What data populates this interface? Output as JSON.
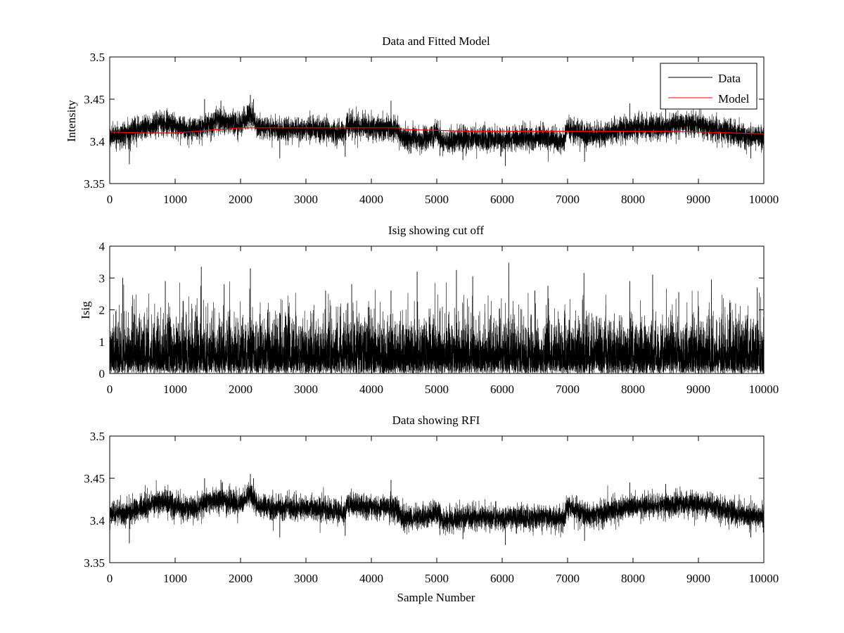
{
  "chart_data": [
    {
      "type": "line",
      "title": "Data and Fitted Model",
      "xlabel": "",
      "ylabel": "Intensity",
      "xlim": [
        0,
        10000
      ],
      "ylim": [
        3.35,
        3.5
      ],
      "xticks": [
        0,
        1000,
        2000,
        3000,
        4000,
        5000,
        6000,
        7000,
        8000,
        9000,
        10000
      ],
      "yticks": [
        3.35,
        3.4,
        3.45,
        3.5
      ],
      "xtick_labels": [
        "0",
        "1000",
        "2000",
        "3000",
        "4000",
        "5000",
        "6000",
        "7000",
        "8000",
        "9000",
        "10000"
      ],
      "ytick_labels": [
        "3.35",
        "3.4",
        "3.45",
        "3.5"
      ],
      "n_samples": 10000,
      "legend": {
        "position": "top-right",
        "entries": [
          "Data",
          "Model"
        ]
      },
      "series": [
        {
          "name": "Data",
          "color": "#000000",
          "kind": "noisy",
          "baseline_x": [
            0,
            300,
            800,
            1200,
            1400,
            1700,
            2000,
            2150,
            2250,
            2600,
            3000,
            3300,
            3600,
            3620,
            4000,
            4400,
            4450,
            4800,
            5000,
            5100,
            5500,
            6000,
            6500,
            6950,
            7000,
            7300,
            7600,
            8000,
            8500,
            8900,
            9300,
            9700,
            10000
          ],
          "baseline_y": [
            3.406,
            3.41,
            3.423,
            3.413,
            3.418,
            3.425,
            3.42,
            3.432,
            3.418,
            3.414,
            3.415,
            3.413,
            3.408,
            3.42,
            3.416,
            3.415,
            3.404,
            3.402,
            3.41,
            3.4,
            3.404,
            3.402,
            3.404,
            3.402,
            3.416,
            3.406,
            3.41,
            3.416,
            3.418,
            3.42,
            3.415,
            3.406,
            3.404
          ],
          "noise_sd": 0.007,
          "spikes": [
            [
              2150,
              3.455
            ],
            [
              2200,
              3.45
            ],
            [
              1700,
              3.448
            ],
            [
              1450,
              3.45
            ],
            [
              4300,
              3.448
            ],
            [
              7950,
              3.445
            ],
            [
              8500,
              3.443
            ],
            [
              300,
              3.373
            ],
            [
              6050,
              3.371
            ],
            [
              7260,
              3.376
            ],
            [
              5400,
              3.378
            ],
            [
              2600,
              3.38
            ],
            [
              9800,
              3.38
            ],
            [
              3600,
              3.382
            ],
            [
              5050,
              3.383
            ]
          ]
        },
        {
          "name": "Model",
          "color": "#ff0000",
          "kind": "smooth",
          "x": [
            0,
            500,
            1000,
            1500,
            2000,
            2500,
            3000,
            3500,
            4000,
            4400,
            4500,
            5000,
            5500,
            6000,
            6500,
            7000,
            7500,
            8000,
            8500,
            9000,
            9500,
            10000
          ],
          "y": [
            3.411,
            3.41,
            3.41,
            3.413,
            3.416,
            3.416,
            3.416,
            3.416,
            3.416,
            3.416,
            3.414,
            3.413,
            3.412,
            3.412,
            3.412,
            3.412,
            3.412,
            3.412,
            3.412,
            3.411,
            3.41,
            3.409
          ]
        }
      ]
    },
    {
      "type": "line",
      "title": "Isig showing cut off",
      "xlabel": "",
      "ylabel": "Isig",
      "xlim": [
        0,
        10000
      ],
      "ylim": [
        0,
        4
      ],
      "xticks": [
        0,
        1000,
        2000,
        3000,
        4000,
        5000,
        6000,
        7000,
        8000,
        9000,
        10000
      ],
      "yticks": [
        0,
        1,
        2,
        3,
        4
      ],
      "xtick_labels": [
        "0",
        "1000",
        "2000",
        "3000",
        "4000",
        "5000",
        "6000",
        "7000",
        "8000",
        "9000",
        "10000"
      ],
      "ytick_labels": [
        "0",
        "1",
        "2",
        "3",
        "4"
      ],
      "n_samples": 10000,
      "series": [
        {
          "name": "Isig",
          "color": "#000000",
          "kind": "abs-noise",
          "scale": 0.78,
          "cap": 3.5,
          "spikes": [
            [
              6100,
              3.48
            ],
            [
              1400,
              3.35
            ],
            [
              2150,
              3.3
            ],
            [
              5300,
              3.25
            ],
            [
              4700,
              3.2
            ],
            [
              7250,
              3.15
            ],
            [
              8300,
              3.1
            ],
            [
              5550,
              3.05
            ],
            [
              200,
              3.0
            ],
            [
              9200,
              2.95
            ],
            [
              7950,
              2.9
            ],
            [
              850,
              2.9
            ],
            [
              3700,
              2.8
            ],
            [
              1750,
              2.8
            ],
            [
              6700,
              2.75
            ],
            [
              9900,
              2.7
            ],
            [
              4300,
              2.6
            ],
            [
              3300,
              2.6
            ],
            [
              6500,
              2.6
            ],
            [
              8700,
              2.55
            ]
          ]
        }
      ]
    },
    {
      "type": "line",
      "title": "Data showing RFI",
      "xlabel": "Sample Number",
      "ylabel": "",
      "xlim": [
        0,
        10000
      ],
      "ylim": [
        3.35,
        3.5
      ],
      "xticks": [
        0,
        1000,
        2000,
        3000,
        4000,
        5000,
        6000,
        7000,
        8000,
        9000,
        10000
      ],
      "yticks": [
        3.35,
        3.4,
        3.45,
        3.5
      ],
      "xtick_labels": [
        "0",
        "1000",
        "2000",
        "3000",
        "4000",
        "5000",
        "6000",
        "7000",
        "8000",
        "9000",
        "10000"
      ],
      "ytick_labels": [
        "3.35",
        "3.4",
        "3.45",
        "3.5"
      ],
      "n_samples": 10000,
      "series": [
        {
          "name": "Data",
          "color": "#000000",
          "kind": "noisy",
          "baseline_x": [
            0,
            300,
            800,
            1200,
            1400,
            1700,
            2000,
            2150,
            2250,
            2600,
            3000,
            3300,
            3600,
            3620,
            4000,
            4400,
            4450,
            4800,
            5000,
            5100,
            5500,
            6000,
            6500,
            6950,
            7000,
            7300,
            7600,
            8000,
            8500,
            8900,
            9300,
            9700,
            10000
          ],
          "baseline_y": [
            3.406,
            3.41,
            3.423,
            3.413,
            3.418,
            3.425,
            3.42,
            3.432,
            3.418,
            3.414,
            3.415,
            3.413,
            3.408,
            3.42,
            3.416,
            3.415,
            3.404,
            3.402,
            3.41,
            3.4,
            3.404,
            3.402,
            3.404,
            3.402,
            3.416,
            3.406,
            3.41,
            3.416,
            3.418,
            3.42,
            3.415,
            3.406,
            3.404
          ],
          "noise_sd": 0.007,
          "spikes": [
            [
              2150,
              3.455
            ],
            [
              2200,
              3.45
            ],
            [
              1700,
              3.448
            ],
            [
              1450,
              3.45
            ],
            [
              4300,
              3.448
            ],
            [
              7950,
              3.445
            ],
            [
              8500,
              3.443
            ],
            [
              300,
              3.373
            ],
            [
              6050,
              3.371
            ],
            [
              7260,
              3.376
            ],
            [
              5400,
              3.378
            ],
            [
              2600,
              3.38
            ],
            [
              9800,
              3.38
            ],
            [
              3600,
              3.382
            ],
            [
              5050,
              3.383
            ]
          ]
        }
      ]
    }
  ]
}
